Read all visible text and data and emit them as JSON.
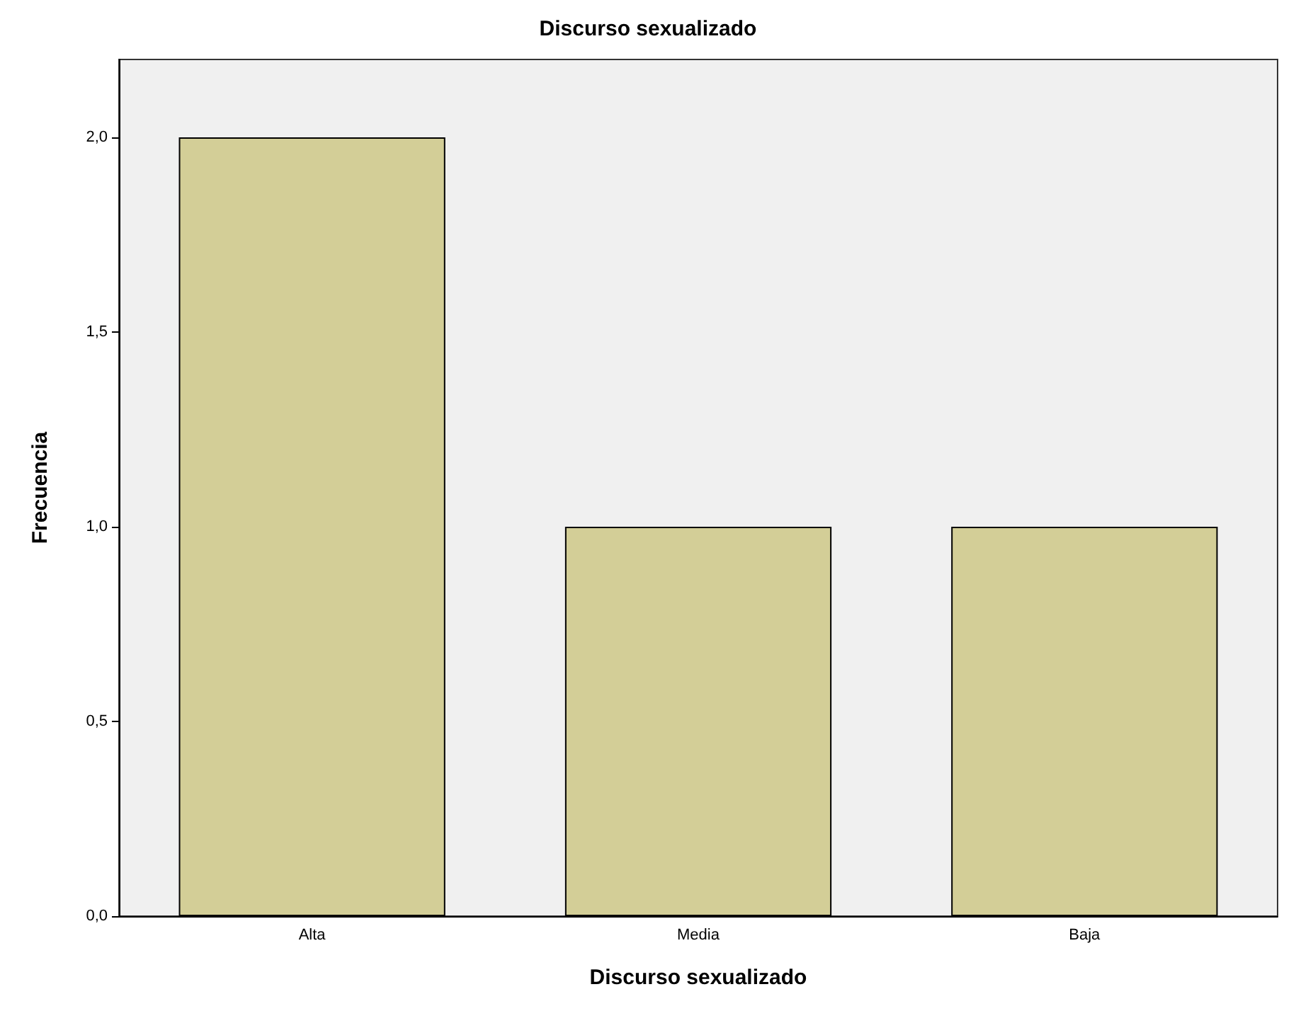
{
  "chart_data": {
    "type": "bar",
    "title": "Discurso sexualizado",
    "xlabel": "Discurso sexualizado",
    "ylabel": "Frecuencia",
    "categories": [
      "Alta",
      "Media",
      "Baja"
    ],
    "values": [
      2,
      1,
      1
    ],
    "color": "#d3ce97",
    "ylim": [
      0,
      2.2
    ],
    "yticks": [
      {
        "value": 0,
        "label": "0,0"
      },
      {
        "value": 0.5,
        "label": "0,5"
      },
      {
        "value": 1,
        "label": "1,0"
      },
      {
        "value": 1.5,
        "label": "1,5"
      },
      {
        "value": 2,
        "label": "2,0"
      }
    ],
    "grid": false
  }
}
